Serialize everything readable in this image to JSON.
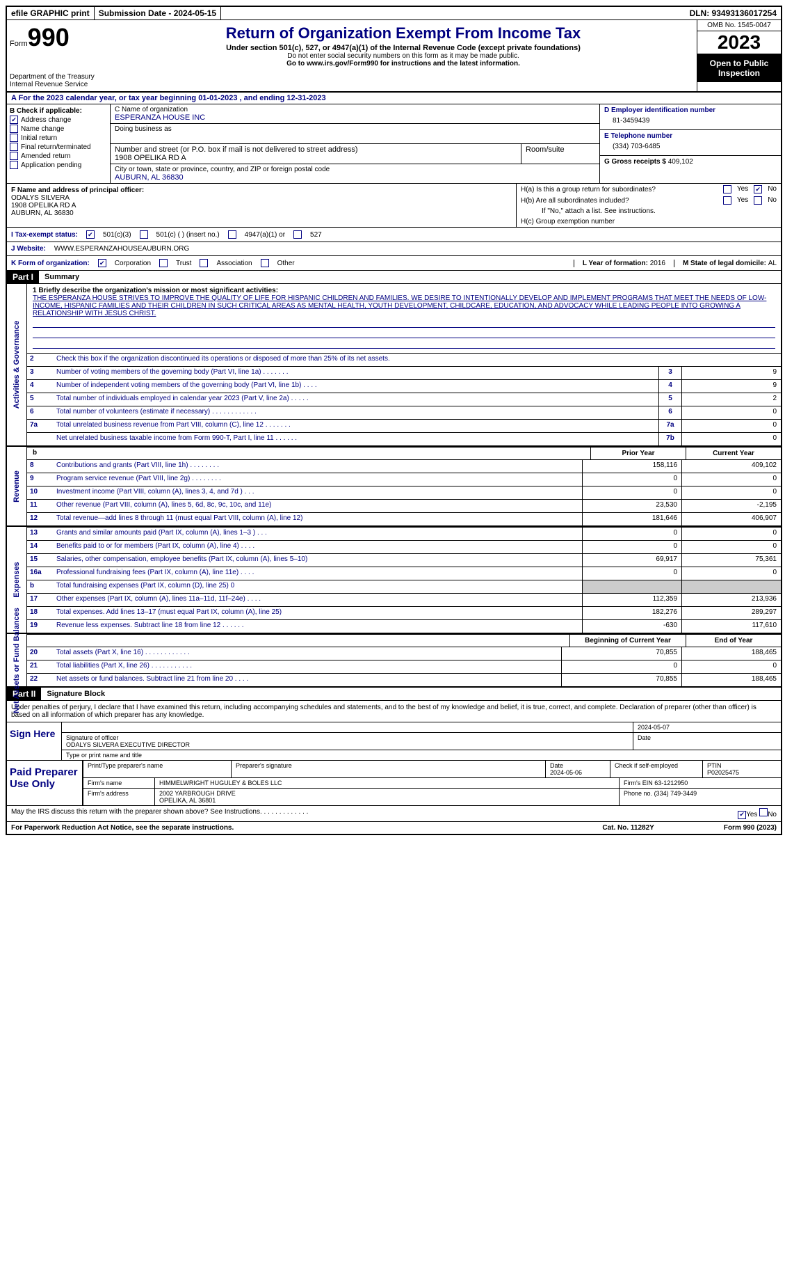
{
  "topbar": {
    "efile": "efile GRAPHIC print",
    "submission": "Submission Date - 2024-05-15",
    "dln": "DLN: 93493136017254"
  },
  "header": {
    "form_label": "Form",
    "form_num": "990",
    "dept": "Department of the Treasury Internal Revenue Service",
    "title": "Return of Organization Exempt From Income Tax",
    "subtitle": "Under section 501(c), 527, or 4947(a)(1) of the Internal Revenue Code (except private foundations)",
    "note1": "Do not enter social security numbers on this form as it may be made public.",
    "note2": "Go to www.irs.gov/Form990 for instructions and the latest information.",
    "omb": "OMB No. 1545-0047",
    "year": "2023",
    "open": "Open to Public Inspection"
  },
  "section_a": "A For the 2023 calendar year, or tax year beginning 01-01-2023   , and ending 12-31-2023",
  "section_b": {
    "label": "B Check if applicable:",
    "items": [
      "Address change",
      "Name change",
      "Initial return",
      "Final return/terminated",
      "Amended return",
      "Application pending"
    ],
    "checked": [
      true,
      false,
      false,
      false,
      false,
      false
    ]
  },
  "section_c": {
    "name_label": "C Name of organization",
    "name": "ESPERANZA HOUSE INC",
    "dba_label": "Doing business as",
    "dba": "",
    "addr_label": "Number and street (or P.O. box if mail is not delivered to street address)",
    "addr": "1908 OPELIKA RD A",
    "room_label": "Room/suite",
    "city_label": "City or town, state or province, country, and ZIP or foreign postal code",
    "city": "AUBURN, AL  36830"
  },
  "section_d": {
    "label": "D Employer identification number",
    "value": "81-3459439"
  },
  "section_e": {
    "label": "E Telephone number",
    "value": "(334) 703-6485"
  },
  "section_g": {
    "label": "G Gross receipts $",
    "value": "409,102"
  },
  "section_f": {
    "label": "F Name and address of principal officer:",
    "name": "ODALYS SILVERA",
    "addr1": "1908 OPELIKA RD A",
    "addr2": "AUBURN, AL  36830"
  },
  "section_h": {
    "ha": "H(a)  Is this a group return for subordinates?",
    "hb": "H(b)  Are all subordinates included?",
    "hnote": "If \"No,\" attach a list. See instructions.",
    "hc": "H(c)  Group exemption number"
  },
  "section_i": {
    "label": "I   Tax-exempt status:",
    "opts": [
      "501(c)(3)",
      "501(c) (  ) (insert no.)",
      "4947(a)(1) or",
      "527"
    ]
  },
  "section_j": {
    "label": "J   Website:",
    "value": "WWW.ESPERANZAHOUSEAUBURN.ORG"
  },
  "section_k": {
    "label": "K Form of organization:",
    "opts": [
      "Corporation",
      "Trust",
      "Association",
      "Other"
    ]
  },
  "section_l": {
    "label": "L Year of formation: ",
    "value": "2016"
  },
  "section_m": {
    "label": "M State of legal domicile: ",
    "value": "AL"
  },
  "part1": {
    "tag": "Part I",
    "title": "Summary",
    "mission_label": "1   Briefly describe the organization's mission or most significant activities:",
    "mission": "THE ESPERANZA HOUSE STRIVES TO IMPROVE THE QUALITY OF LIFE FOR HISPANIC CHILDREN AND FAMILIES. WE DESIRE TO INTENTIONALLY DEVELOP AND IMPLEMENT PROGRAMS THAT MEET THE NEEDS OF LOW-INCOME, HISPANIC FAMILIES AND THEIR CHILDREN IN SUCH CRITICAL AREAS AS MENTAL HEALTH, YOUTH DEVELOPMENT, CHILDCARE, EDUCATION, AND ADVOCACY WHILE LEADING PEOPLE INTO GROWING A RELATIONSHIP WITH JESUS CHRIST.",
    "line2": "Check this box      if the organization discontinued its operations or disposed of more than 25% of its net assets.",
    "governance_label": "Activities & Governance",
    "revenue_label": "Revenue",
    "expenses_label": "Expenses",
    "netassets_label": "Net Assets or Fund Balances",
    "gov_rows": [
      {
        "n": "3",
        "t": "Number of voting members of the governing body (Part VI, line 1a)   .   .   .   .   .   .   .",
        "c": "3",
        "v": "9"
      },
      {
        "n": "4",
        "t": "Number of independent voting members of the governing body (Part VI, line 1b)   .   .   .   .",
        "c": "4",
        "v": "9"
      },
      {
        "n": "5",
        "t": "Total number of individuals employed in calendar year 2023 (Part V, line 2a)   .   .   .   .   .",
        "c": "5",
        "v": "2"
      },
      {
        "n": "6",
        "t": "Total number of volunteers (estimate if necessary)   .   .   .   .   .   .   .   .   .   .   .   .",
        "c": "6",
        "v": "0"
      },
      {
        "n": "7a",
        "t": "Total unrelated business revenue from Part VIII, column (C), line 12   .   .   .   .   .   .   .",
        "c": "7a",
        "v": "0"
      },
      {
        "n": "",
        "t": "Net unrelated business taxable income from Form 990-T, Part I, line 11   .   .   .   .   .   .",
        "c": "7b",
        "v": "0"
      }
    ],
    "col_headers": {
      "b": "b",
      "py": "Prior Year",
      "cy": "Current Year"
    },
    "rev_rows": [
      {
        "n": "8",
        "t": "Contributions and grants (Part VIII, line 1h)   .   .   .   .   .   .   .   .",
        "py": "158,116",
        "cy": "409,102"
      },
      {
        "n": "9",
        "t": "Program service revenue (Part VIII, line 2g)   .   .   .   .   .   .   .   .",
        "py": "0",
        "cy": "0"
      },
      {
        "n": "10",
        "t": "Investment income (Part VIII, column (A), lines 3, 4, and 7d )   .   .   .",
        "py": "0",
        "cy": "0"
      },
      {
        "n": "11",
        "t": "Other revenue (Part VIII, column (A), lines 5, 6d, 8c, 9c, 10c, and 11e)",
        "py": "23,530",
        "cy": "-2,195"
      },
      {
        "n": "12",
        "t": "Total revenue—add lines 8 through 11 (must equal Part VIII, column (A), line 12)",
        "py": "181,646",
        "cy": "406,907"
      }
    ],
    "exp_rows": [
      {
        "n": "13",
        "t": "Grants and similar amounts paid (Part IX, column (A), lines 1–3 )   .   .   .",
        "py": "0",
        "cy": "0"
      },
      {
        "n": "14",
        "t": "Benefits paid to or for members (Part IX, column (A), line 4)   .   .   .   .",
        "py": "0",
        "cy": "0"
      },
      {
        "n": "15",
        "t": "Salaries, other compensation, employee benefits (Part IX, column (A), lines 5–10)",
        "py": "69,917",
        "cy": "75,361"
      },
      {
        "n": "16a",
        "t": "Professional fundraising fees (Part IX, column (A), line 11e)   .   .   .   .",
        "py": "0",
        "cy": "0"
      },
      {
        "n": "b",
        "t": "Total fundraising expenses (Part IX, column (D), line 25) 0",
        "py": "",
        "cy": "",
        "grey": true
      },
      {
        "n": "17",
        "t": "Other expenses (Part IX, column (A), lines 11a–11d, 11f–24e)   .   .   .   .",
        "py": "112,359",
        "cy": "213,936"
      },
      {
        "n": "18",
        "t": "Total expenses. Add lines 13–17 (must equal Part IX, column (A), line 25)",
        "py": "182,276",
        "cy": "289,297"
      },
      {
        "n": "19",
        "t": "Revenue less expenses. Subtract line 18 from line 12   .   .   .   .   .   .",
        "py": "-630",
        "cy": "117,610"
      }
    ],
    "na_headers": {
      "py": "Beginning of Current Year",
      "cy": "End of Year"
    },
    "na_rows": [
      {
        "n": "20",
        "t": "Total assets (Part X, line 16)   .   .   .   .   .   .   .   .   .   .   .   .",
        "py": "70,855",
        "cy": "188,465"
      },
      {
        "n": "21",
        "t": "Total liabilities (Part X, line 26)   .   .   .   .   .   .   .   .   .   .   .",
        "py": "0",
        "cy": "0"
      },
      {
        "n": "22",
        "t": "Net assets or fund balances. Subtract line 21 from line 20   .   .   .   .",
        "py": "70,855",
        "cy": "188,465"
      }
    ]
  },
  "part2": {
    "tag": "Part II",
    "title": "Signature Block",
    "perjury": "Under penalties of perjury, I declare that I have examined this return, including accompanying schedules and statements, and to the best of my knowledge and belief, it is true, correct, and complete. Declaration of preparer (other than officer) is based on all information of which preparer has any knowledge."
  },
  "sign": {
    "label": "Sign Here",
    "date": "2024-05-07",
    "sig_label": "Signature of officer",
    "officer": "ODALYS SILVERA  EXECUTIVE DIRECTOR",
    "name_label": "Type or print name and title",
    "date_label": "Date"
  },
  "prep": {
    "label": "Paid Preparer Use Only",
    "name_label": "Print/Type preparer's name",
    "sig_label": "Preparer's signature",
    "date_label": "Date",
    "date": "2024-05-06",
    "check_label": "Check       if self-employed",
    "ptin_label": "PTIN",
    "ptin": "P02025475",
    "firm_name_label": "Firm's name",
    "firm_name": "HIMMELWRIGHT HUGULEY & BOLES LLC",
    "firm_ein_label": "Firm's EIN",
    "firm_ein": "63-1212950",
    "firm_addr_label": "Firm's address",
    "firm_addr1": "2002 YARBROUGH DRIVE",
    "firm_addr2": "OPELIKA, AL  36801",
    "phone_label": "Phone no.",
    "phone": "(334) 749-3449"
  },
  "bottom": {
    "discuss": "May the IRS discuss this return with the preparer shown above? See Instructions.   .   .   .   .   .   .   .   .   .   .   .   .",
    "yes": "Yes",
    "no": "No"
  },
  "footer": {
    "left": "For Paperwork Reduction Act Notice, see the separate instructions.",
    "center": "Cat. No. 11282Y",
    "right": "Form 990 (2023)"
  }
}
